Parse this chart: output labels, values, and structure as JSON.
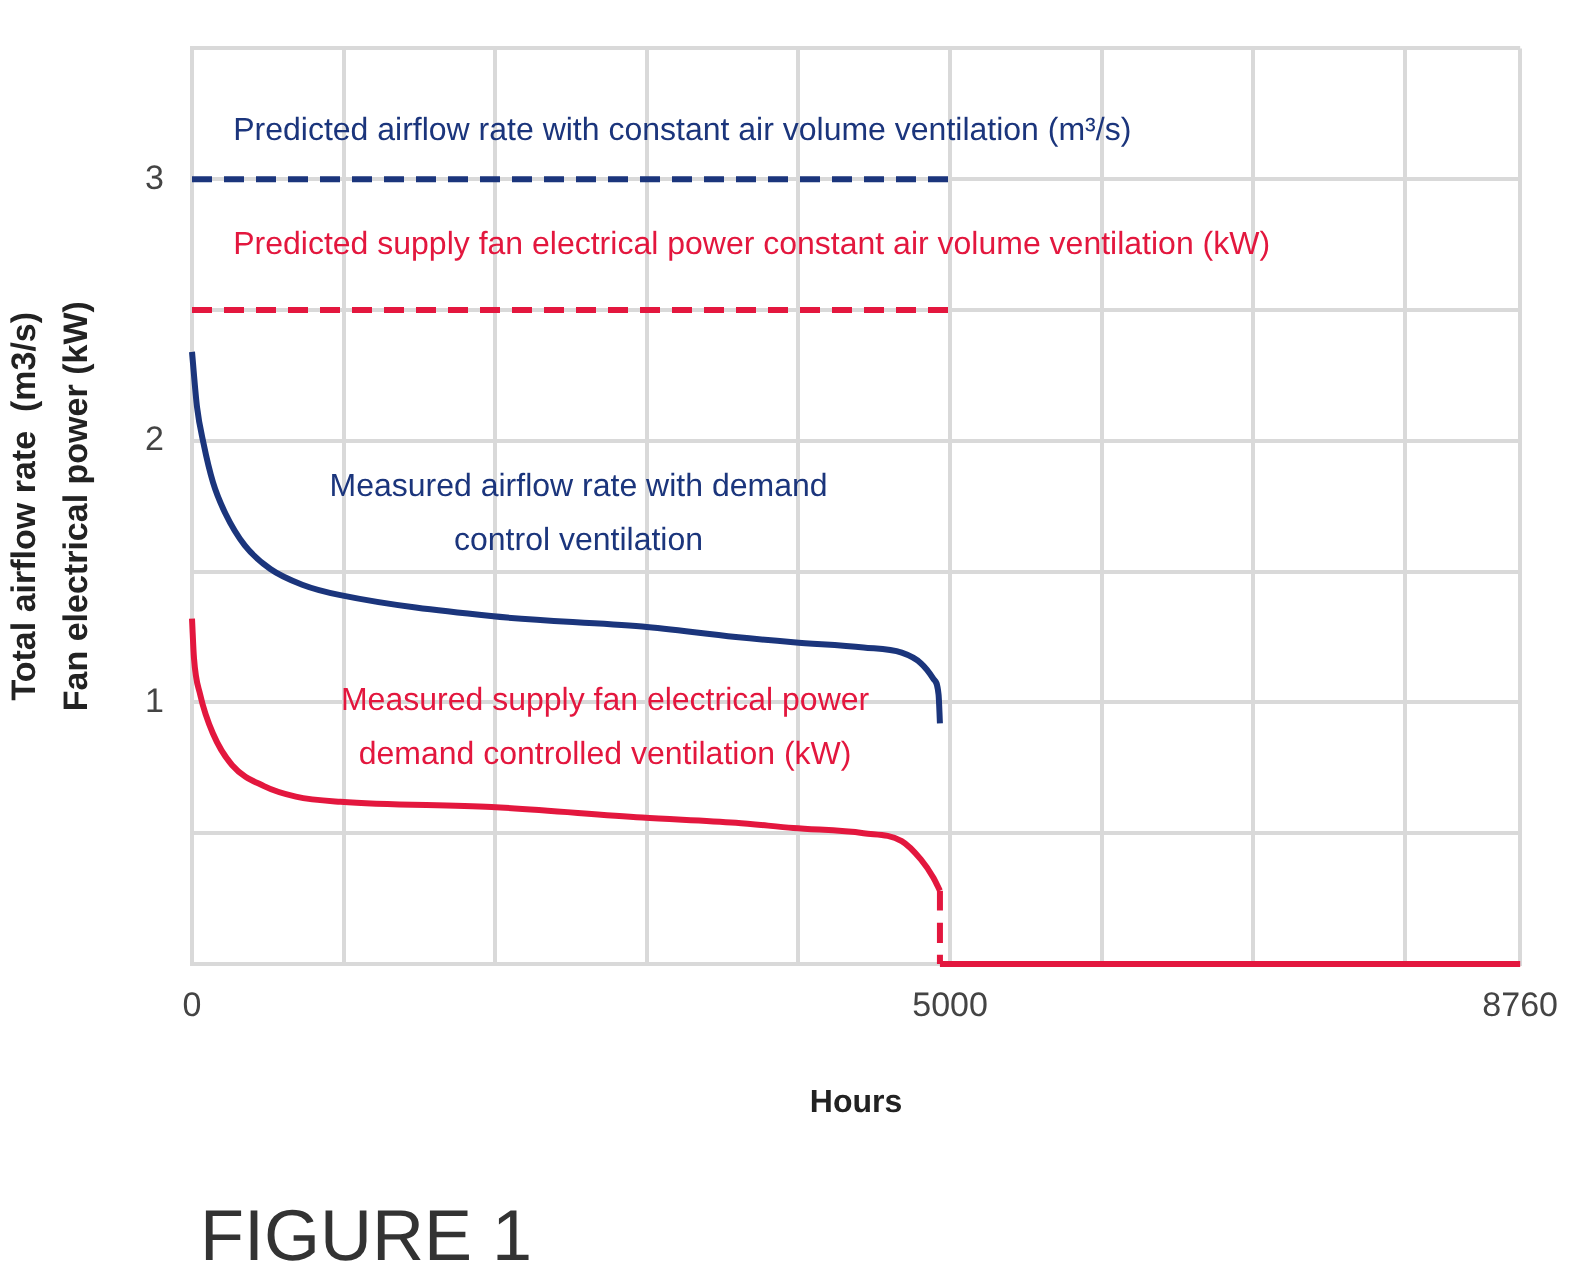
{
  "chart_data": {
    "type": "line",
    "title": "FIGURE 1",
    "xlabel": "Hours",
    "ylabel": "Total airflow rate  (m3/s)\nFan electrical power (kW)",
    "xlim": [
      0,
      8760
    ],
    "xticks": [
      0,
      {
        "value": 1000,
        "label": null
      },
      {
        "value": 2000,
        "label": null
      },
      {
        "value": 3000,
        "label": null
      },
      {
        "value": 4000,
        "label": null
      },
      5000,
      {
        "value": 6000,
        "label": null
      },
      {
        "value": 7000,
        "label": null
      },
      {
        "value": 8000,
        "label": null
      },
      8760
    ],
    "ylim": [
      0,
      3.5
    ],
    "yticks": [
      {
        "value": 0,
        "label": null
      },
      {
        "value": 0.5,
        "label": null
      },
      1,
      {
        "value": 1.5,
        "label": null
      },
      2,
      {
        "value": 2.5,
        "label": null
      },
      3,
      {
        "value": 3.5,
        "label": null
      }
    ],
    "grid": true,
    "marker": "none",
    "series": [
      {
        "name": "Predicted airflow rate with constant air volume ventilation (m³/s)",
        "color": "#1b357c",
        "line_style": "dashed",
        "x": [
          0,
          5000
        ],
        "values": [
          3,
          3
        ]
      },
      {
        "name": "Predicted supply fan electrical power constant air volume ventilation (kW)",
        "color": "#e3173e",
        "line_style": "dashed",
        "x": [
          0,
          5000
        ],
        "values": [
          2.5,
          2.5
        ]
      },
      {
        "name": "Measured airflow rate with demand control ventilation",
        "color": "#1b357c",
        "line_style": "solid",
        "x": [
          0,
          33,
          76,
          139,
          222,
          348,
          517,
          727,
          979,
          1972,
          2969,
          3587,
          3966,
          4429,
          4681,
          4807,
          4890,
          4924,
          4933
        ],
        "values": [
          2.34,
          2.13,
          1.99,
          1.84,
          1.72,
          1.6,
          1.51,
          1.45,
          1.41,
          1.33,
          1.29,
          1.25,
          1.23,
          1.21,
          1.19,
          1.15,
          1.09,
          1.03,
          0.92
        ]
      },
      {
        "name": "Measured supply fan electrical power demand controlled ventilation (kW)",
        "color": "#e3173e",
        "line_style": "solid",
        "x": [
          0,
          13,
          54,
          139,
          265,
          475,
          685,
          979,
          1976,
          2969,
          3587,
          3966,
          4429,
          4681,
          4807,
          4890,
          4933
        ],
        "values": [
          1.32,
          1.17,
          1.03,
          0.88,
          0.76,
          0.68,
          0.64,
          0.62,
          0.6,
          0.56,
          0.54,
          0.52,
          0.5,
          0.47,
          0.4,
          0.33,
          0.28
        ]
      },
      {
        "color": "#e3173e",
        "line_style": "dashed",
        "x": [
          4933,
          4933
        ],
        "values": [
          0.28,
          0
        ]
      },
      {
        "color": "#e3173e",
        "line_style": "solid",
        "x": [
          4933,
          8760
        ],
        "values": [
          0,
          0
        ]
      }
    ]
  }
}
